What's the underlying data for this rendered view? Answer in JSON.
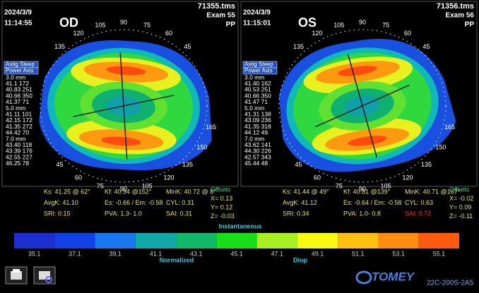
{
  "panels": [
    {
      "date": "2024/3/9",
      "time": "11:14:55",
      "eye": "OD",
      "file": "71355.tms",
      "exam": "Exam 55",
      "operator": "PP",
      "table": {
        "header": [
          "Astig Steep",
          "Power Axis"
        ],
        "rows": [
          "3.0 mm",
          "41.1 172",
          "40.83 251",
          "40.66 350",
          "41.37 71",
          "5.0 mm",
          "41.11 101",
          "42.15 172",
          "41.35 272",
          "44.42 70",
          "7.0 mm",
          "43.40 118",
          "43.39 176",
          "42.55 227",
          "46.25 78"
        ]
      },
      "axis_top": [
        "135",
        "120",
        "105",
        "90",
        "75",
        "60",
        "45"
      ],
      "axis_bottom": [
        "45",
        "60",
        "75",
        "90",
        "105",
        "120",
        "135",
        "150",
        "165"
      ],
      "stats": [
        [
          "Ks: 41.25 @ 62°",
          "Kf: 40.94 @152°",
          "MinK: 40.72 @ 8°"
        ],
        [
          "AvgK: 41.10",
          "Es: -0.66 / Em: -0.58",
          "CYL: 0.31"
        ],
        [
          "SRI: 0.15",
          "PVA: 1.3- 1.0",
          "SAI: 0.31"
        ]
      ],
      "offsets": [
        "Offsets",
        "X= 0.13",
        "Y= 0.12",
        "Z= -0.03"
      ]
    },
    {
      "date": "2024/3/9",
      "time": "11:15:01",
      "eye": "OS",
      "file": "71356.tms",
      "exam": "Exam 56",
      "operator": "PP",
      "table": {
        "header": [
          "Astig Steep",
          "Power Axis"
        ],
        "rows": [
          "3.0 mm",
          "41.40 162",
          "40.53 251",
          "40.66 350",
          "41.47 71",
          "5.0 mm",
          "41.31 138",
          "43.09 236",
          "41.35 318",
          "44.12 49",
          "7.0 mm",
          "43.62 141",
          "44.30 226",
          "42.57 343",
          "45.44 48"
        ]
      },
      "axis_top": [
        "135",
        "120",
        "105",
        "90",
        "75",
        "60",
        "45"
      ],
      "axis_bottom": [
        "45",
        "60",
        "75",
        "90",
        "105",
        "120",
        "135",
        "150",
        "165"
      ],
      "stats": [
        [
          "Ks: 41.44 @ 49°",
          "Kf: 40.81 @139°",
          "MinK: 40.71 @167°"
        ],
        [
          "AvgK: 41.12",
          "Es: -0.64 / Em: -0.58",
          "CYL: 0.63"
        ],
        [
          "SRI: 0.34",
          "PVA: 1.0- 0.8",
          "SAI: 0.72"
        ]
      ],
      "offsets": [
        "Offsets",
        "X= -0.02",
        "Y= 0.09",
        "Z= -0.11"
      ]
    }
  ],
  "scale": {
    "title": "Instantaneous",
    "labels": [
      "35.1",
      "37.1",
      "39.1",
      "41.1",
      "43.1",
      "45.1",
      "47.1",
      "49.1",
      "51.1",
      "53.1",
      "55.1"
    ],
    "colors": [
      "#1c2fd0",
      "#1440e8",
      "#1a78f0",
      "#10a8a8",
      "#10b868",
      "#18e018",
      "#a8f020",
      "#f8f810",
      "#ffc010",
      "#ff8c10",
      "#ff5a10"
    ],
    "left_caption": "Normalized",
    "right_caption": "Diop"
  },
  "footer": {
    "brand": "TOMEY",
    "code": "22C-200S-2A5"
  }
}
